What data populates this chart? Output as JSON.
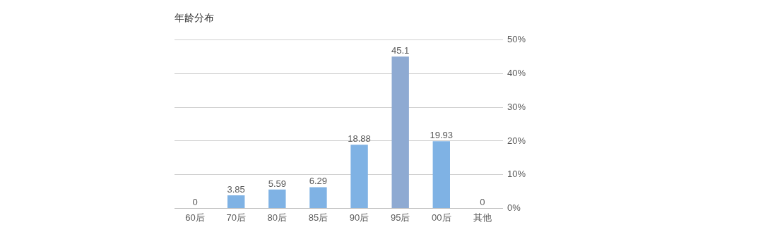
{
  "chart_data": {
    "type": "bar",
    "title": "年龄分布",
    "categories": [
      "60后",
      "70后",
      "80后",
      "85后",
      "90后",
      "95后",
      "00后",
      "其他"
    ],
    "values": [
      0,
      3.85,
      5.59,
      6.29,
      18.88,
      45.1,
      19.93,
      0
    ],
    "colors": [
      "#7fb2e4",
      "#7fb2e4",
      "#7fb2e4",
      "#7fb2e4",
      "#7fb2e4",
      "#8eaad2",
      "#7fb2e4",
      "#7fb2e4"
    ],
    "ylim": [
      0,
      50
    ],
    "yticks": [
      {
        "value": 0,
        "label": "0%"
      },
      {
        "value": 10,
        "label": "10%"
      },
      {
        "value": 20,
        "label": "20%"
      },
      {
        "value": 30,
        "label": "30%"
      },
      {
        "value": 40,
        "label": "40%"
      },
      {
        "value": 50,
        "label": "50%"
      }
    ],
    "grid": "y",
    "data_labels": true,
    "legend": false
  }
}
